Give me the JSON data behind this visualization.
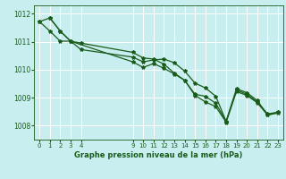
{
  "title": "Graphe pression niveau de la mer (hPa)",
  "bg_color": "#c8eef0",
  "grid_color": "#ffffff",
  "line_color": "#1a5c1a",
  "xlim": [
    -0.5,
    23.5
  ],
  "ylim": [
    1007.5,
    1012.3
  ],
  "yticks": [
    1008,
    1009,
    1010,
    1011,
    1012
  ],
  "xtick_positions": [
    0,
    1,
    2,
    3,
    4,
    9,
    10,
    11,
    12,
    13,
    14,
    15,
    16,
    17,
    18,
    19,
    20,
    21,
    22,
    23
  ],
  "xtick_labels": [
    "0",
    "1",
    "2",
    "3",
    "4",
    "9",
    "10",
    "11",
    "12",
    "13",
    "14",
    "15",
    "16",
    "17",
    "18",
    "19",
    "20",
    "21",
    "22",
    "23"
  ],
  "series1_x": [
    0,
    1,
    2,
    3,
    4,
    9,
    10,
    11,
    12,
    13,
    14,
    15,
    16,
    17,
    18,
    19,
    20,
    21,
    22,
    23
  ],
  "series1_y": [
    1011.72,
    1011.85,
    1011.38,
    1011.02,
    1010.95,
    1010.62,
    1010.42,
    1010.38,
    1010.2,
    1009.88,
    1009.62,
    1009.12,
    1009.05,
    1008.8,
    1008.15,
    1009.28,
    1009.12,
    1008.85,
    1008.42,
    1008.48
  ],
  "series2_x": [
    0,
    1,
    2,
    3,
    4,
    9,
    10,
    11,
    12,
    13,
    14,
    15,
    16,
    17,
    18,
    19,
    20,
    21,
    22,
    23
  ],
  "series2_y": [
    1011.72,
    1011.38,
    1011.02,
    1011.02,
    1010.72,
    1010.45,
    1010.28,
    1010.35,
    1010.38,
    1010.25,
    1009.95,
    1009.52,
    1009.35,
    1009.05,
    1008.15,
    1009.32,
    1009.18,
    1008.9,
    1008.38,
    1008.48
  ],
  "series3_x": [
    1,
    2,
    3,
    9,
    10,
    11,
    12,
    13,
    14,
    15,
    16,
    17,
    18,
    19,
    20,
    21,
    22,
    23
  ],
  "series3_y": [
    1011.85,
    1011.38,
    1011.02,
    1010.28,
    1010.08,
    1010.22,
    1010.05,
    1009.85,
    1009.62,
    1009.08,
    1008.85,
    1008.68,
    1008.12,
    1009.22,
    1009.08,
    1008.82,
    1008.38,
    1008.45
  ]
}
